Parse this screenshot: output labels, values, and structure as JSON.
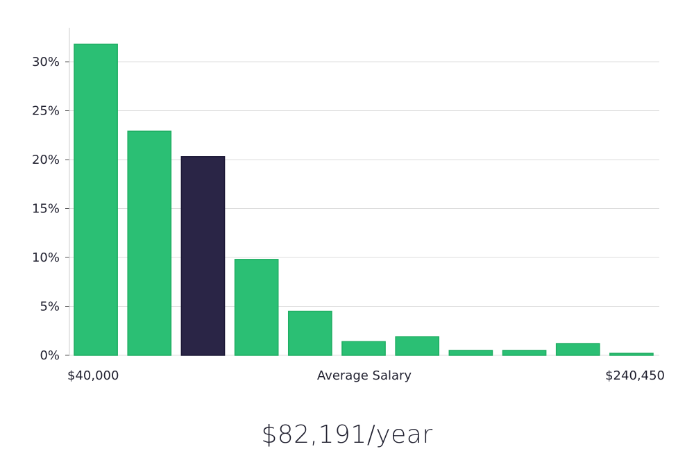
{
  "chart_data": {
    "type": "bar",
    "xlabel": "Average Salary",
    "x_range_labels": [
      "$40,000",
      "$240,450"
    ],
    "yticks": [
      0,
      5,
      10,
      15,
      20,
      25,
      30
    ],
    "ytick_suffix": "%",
    "ylim": [
      0,
      33
    ],
    "grid": true,
    "values": [
      31.8,
      22.9,
      20.3,
      9.8,
      4.5,
      1.4,
      1.9,
      0.5,
      0.5,
      1.2,
      0.2
    ],
    "highlight_index": 2,
    "colors": {
      "bar": "#2bbf74",
      "bar_stroke": "#1fae62",
      "highlight": "#2a2546",
      "grid": "#dcdcdc",
      "axis": "#cccccc"
    }
  },
  "summary": {
    "average_salary": "$82,191/year"
  }
}
